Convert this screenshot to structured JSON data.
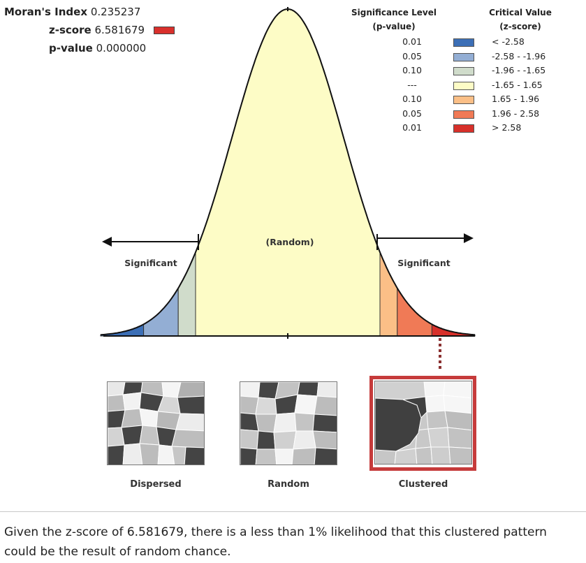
{
  "stats": {
    "moran_label": "Moran's Index",
    "moran_value": "0.235237",
    "z_label": "z-score",
    "z_value": "6.581679",
    "z_color": "#d9302c",
    "p_label": "p-value",
    "p_value": "0.000000"
  },
  "legend": {
    "sig_header_line1": "Significance Level",
    "sig_header_line2": "(p-value)",
    "crit_header_line1": "Critical Value",
    "crit_header_line2": "(z-score)",
    "rows": [
      {
        "p": "0.01",
        "z": "< -2.58",
        "color": "#3c6fb6"
      },
      {
        "p": "0.05",
        "z": "-2.58 - -1.96",
        "color": "#93aed4"
      },
      {
        "p": "0.10",
        "z": "-1.96 - -1.65",
        "color": "#d0dccb"
      },
      {
        "p": "---",
        "z": "-1.65 - 1.65",
        "color": "#fdfcc6"
      },
      {
        "p": "0.10",
        "z": "1.65 - 1.96",
        "color": "#fbbf87"
      },
      {
        "p": "0.05",
        "z": "1.96 - 2.58",
        "color": "#f07a56"
      },
      {
        "p": "0.01",
        "z": "> 2.58",
        "color": "#d7302a"
      }
    ]
  },
  "curve": {
    "random_label": "(Random)",
    "significant_left": "Significant",
    "significant_right": "Significant"
  },
  "maps": {
    "dispersed": "Dispersed",
    "random": "Random",
    "clustered": "Clustered"
  },
  "conclusion": {
    "line1": "Given the z-score of 6.581679, there is a less than 1% likelihood that this clustered pattern",
    "line2": "could be the result of random chance."
  }
}
